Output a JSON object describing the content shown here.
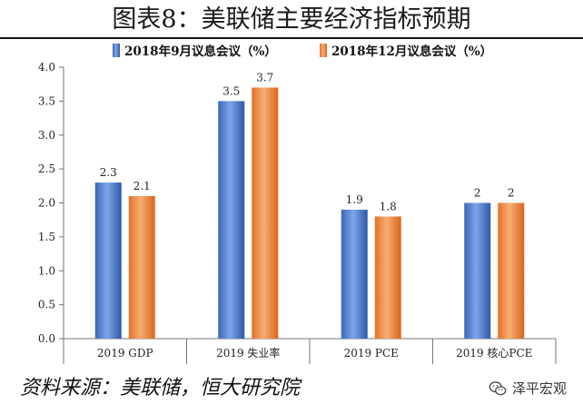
{
  "title": "图表8：美联储主要经济指标预期",
  "source": "资料来源：美联储，恒大研究院",
  "watermark": {
    "text": "泽平宏观",
    "icon": "wechat-icon"
  },
  "chart_data": {
    "type": "bar",
    "categories": [
      "2019 GDP",
      "2019 失业率",
      "2019 PCE",
      "2019 核心PCE"
    ],
    "series": [
      {
        "name": "2018年9月议息会议（%）",
        "values": [
          2.3,
          3.5,
          1.9,
          2
        ],
        "labels": [
          "2.3",
          "3.5",
          "1.9",
          "2"
        ],
        "color": "#4a7bd0"
      },
      {
        "name": "2018年12月议息会议（%）",
        "values": [
          2.1,
          3.7,
          1.8,
          2
        ],
        "labels": [
          "2.1",
          "3.7",
          "1.8",
          "2"
        ],
        "color": "#f0883e"
      }
    ],
    "ylim": [
      0,
      4
    ],
    "yticks": [
      "0.0",
      "0.5",
      "1.0",
      "1.5",
      "2.0",
      "2.5",
      "3.0",
      "3.5",
      "4.0"
    ],
    "legend_position": "top-center",
    "grid": false
  }
}
